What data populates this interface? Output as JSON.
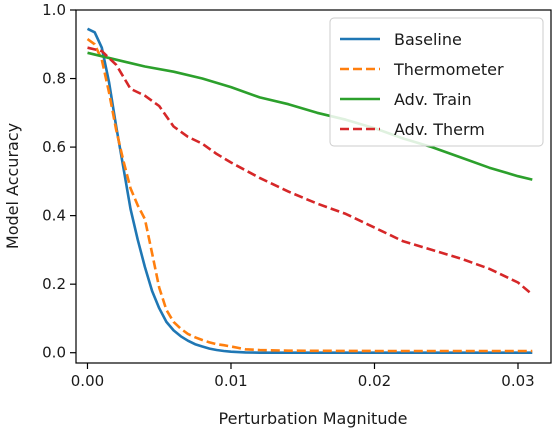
{
  "chart_data": {
    "type": "line",
    "title": "",
    "xlabel": "Perturbation Magnitude",
    "ylabel": "Model Accuracy",
    "xlim": [
      -0.0008,
      0.0323
    ],
    "ylim": [
      -0.03,
      1.0
    ],
    "x_ticks": [
      0.0,
      0.01,
      0.02,
      0.03
    ],
    "x_tick_labels": [
      "0.00",
      "0.01",
      "0.02",
      "0.03"
    ],
    "y_ticks": [
      0.0,
      0.2,
      0.4,
      0.6,
      0.8,
      1.0
    ],
    "y_tick_labels": [
      "0.0",
      "0.2",
      "0.4",
      "0.6",
      "0.8",
      "1.0"
    ],
    "grid": false,
    "legend_position": "top-right",
    "series": [
      {
        "name": "Baseline",
        "color": "#1f77b4",
        "dash": "solid",
        "x": [
          0.0,
          0.0005,
          0.001,
          0.0015,
          0.002,
          0.0025,
          0.003,
          0.0035,
          0.004,
          0.0045,
          0.005,
          0.0055,
          0.006,
          0.0065,
          0.007,
          0.0075,
          0.008,
          0.0085,
          0.009,
          0.0095,
          0.01,
          0.011,
          0.012,
          0.014,
          0.016,
          0.02,
          0.025,
          0.031
        ],
        "y": [
          0.945,
          0.935,
          0.89,
          0.79,
          0.66,
          0.54,
          0.42,
          0.33,
          0.25,
          0.18,
          0.13,
          0.09,
          0.065,
          0.048,
          0.035,
          0.025,
          0.018,
          0.012,
          0.008,
          0.005,
          0.003,
          0.001,
          0.0,
          0.0,
          0.0,
          0.0,
          0.0,
          0.0
        ]
      },
      {
        "name": "Thermometer",
        "color": "#ff7f0e",
        "dash": "dashed",
        "x": [
          0.0,
          0.0005,
          0.001,
          0.0015,
          0.002,
          0.0025,
          0.003,
          0.0035,
          0.004,
          0.0045,
          0.005,
          0.0055,
          0.006,
          0.0065,
          0.007,
          0.0075,
          0.008,
          0.0085,
          0.009,
          0.0095,
          0.01,
          0.0105,
          0.011,
          0.012,
          0.014,
          0.02,
          0.025,
          0.031
        ],
        "y": [
          0.915,
          0.9,
          0.855,
          0.76,
          0.65,
          0.56,
          0.48,
          0.43,
          0.39,
          0.29,
          0.19,
          0.125,
          0.09,
          0.07,
          0.055,
          0.045,
          0.037,
          0.03,
          0.025,
          0.022,
          0.018,
          0.014,
          0.01,
          0.008,
          0.006,
          0.005,
          0.005,
          0.005
        ]
      },
      {
        "name": "Adv. Train",
        "color": "#2ca02c",
        "dash": "solid",
        "x": [
          0.0,
          0.002,
          0.004,
          0.006,
          0.008,
          0.01,
          0.012,
          0.014,
          0.016,
          0.018,
          0.02,
          0.022,
          0.024,
          0.026,
          0.028,
          0.03,
          0.031
        ],
        "y": [
          0.875,
          0.855,
          0.835,
          0.82,
          0.8,
          0.775,
          0.745,
          0.725,
          0.7,
          0.68,
          0.655,
          0.625,
          0.6,
          0.57,
          0.54,
          0.515,
          0.505
        ]
      },
      {
        "name": "Adv. Therm",
        "color": "#d62728",
        "dash": "dashed",
        "x": [
          0.0,
          0.001,
          0.002,
          0.003,
          0.004,
          0.005,
          0.006,
          0.007,
          0.008,
          0.009,
          0.01,
          0.012,
          0.014,
          0.016,
          0.018,
          0.02,
          0.022,
          0.024,
          0.026,
          0.028,
          0.03,
          0.031
        ],
        "y": [
          0.89,
          0.88,
          0.84,
          0.77,
          0.75,
          0.72,
          0.66,
          0.63,
          0.61,
          0.58,
          0.555,
          0.51,
          0.47,
          0.435,
          0.405,
          0.365,
          0.325,
          0.3,
          0.275,
          0.245,
          0.205,
          0.17
        ]
      }
    ]
  }
}
